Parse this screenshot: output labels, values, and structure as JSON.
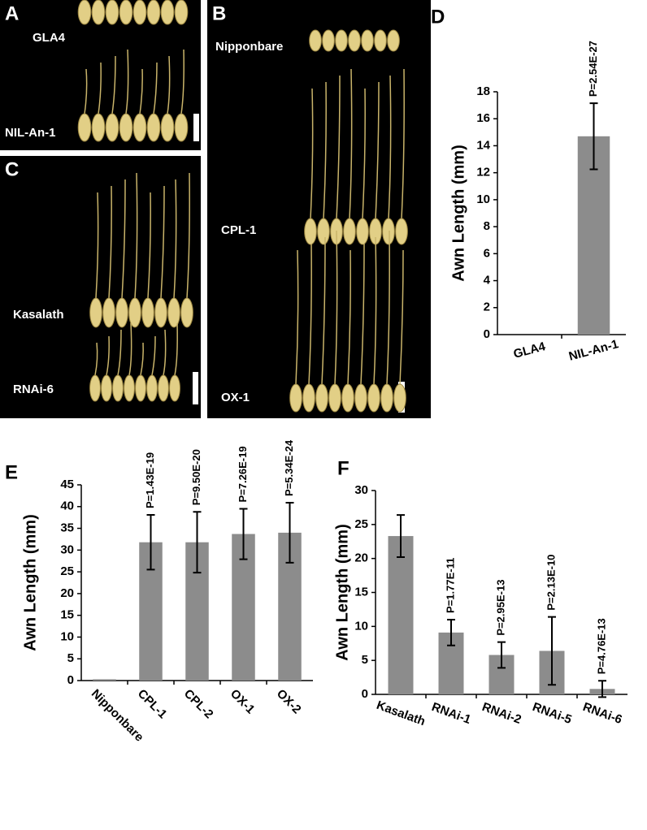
{
  "photo_panels": [
    {
      "letter": "A",
      "labels": [
        "GLA4",
        "NIL-An-1"
      ]
    },
    {
      "letter": "B",
      "labels": [
        "Nipponbare",
        "CPL-1",
        "OX-1"
      ]
    },
    {
      "letter": "C",
      "labels": [
        "Kasalath",
        "RNAi-6"
      ]
    }
  ],
  "chart_data": [
    {
      "type": "bar",
      "letter": "D",
      "y_label": "Awn Length (mm)",
      "color": "#8c8c8c",
      "categories": [
        "GLA4",
        "NIL-An-1"
      ],
      "values": [
        0,
        14.7
      ],
      "errors": [
        null,
        2.45
      ],
      "annotations": [
        null,
        "P=2.54E-27"
      ],
      "ylim": [
        0,
        18
      ],
      "yticks": [
        0,
        2,
        4,
        6,
        8,
        10,
        12,
        14,
        16,
        18
      ]
    },
    {
      "type": "bar",
      "letter": "E",
      "y_label": "Awn Length (mm)",
      "color": "#8c8c8c",
      "categories": [
        "Nipponbare",
        "CPL-1",
        "CPL-2",
        "OX-1",
        "OX-2"
      ],
      "values": [
        0.3,
        31.8,
        31.8,
        33.7,
        34.0
      ],
      "errors": [
        null,
        6.3,
        7.0,
        5.8,
        6.9
      ],
      "annotations": [
        null,
        "P=1.43E-19",
        "P=9.50E-20",
        "P=7.26E-19",
        "P=5.34E-24"
      ],
      "ylim": [
        0,
        45
      ],
      "yticks": [
        0,
        5,
        10,
        15,
        20,
        25,
        30,
        35,
        40,
        45
      ]
    },
    {
      "type": "bar",
      "letter": "F",
      "y_label": "Awn Length (mm)",
      "color": "#8c8c8c",
      "categories": [
        "Kasalath",
        "RNAi-1",
        "RNAi-2",
        "RNAi-5",
        "RNAi-6"
      ],
      "values": [
        23.3,
        9.1,
        5.8,
        6.4,
        0.8
      ],
      "errors": [
        3.1,
        1.9,
        1.9,
        5.0,
        1.2
      ],
      "annotations": [
        null,
        "P=1.77E-11",
        "P=2.95E-13",
        "P=2.13E-10",
        "P=4.76E-13"
      ],
      "ylim": [
        0,
        30
      ],
      "yticks": [
        0,
        5,
        10,
        15,
        20,
        25,
        30
      ]
    }
  ]
}
